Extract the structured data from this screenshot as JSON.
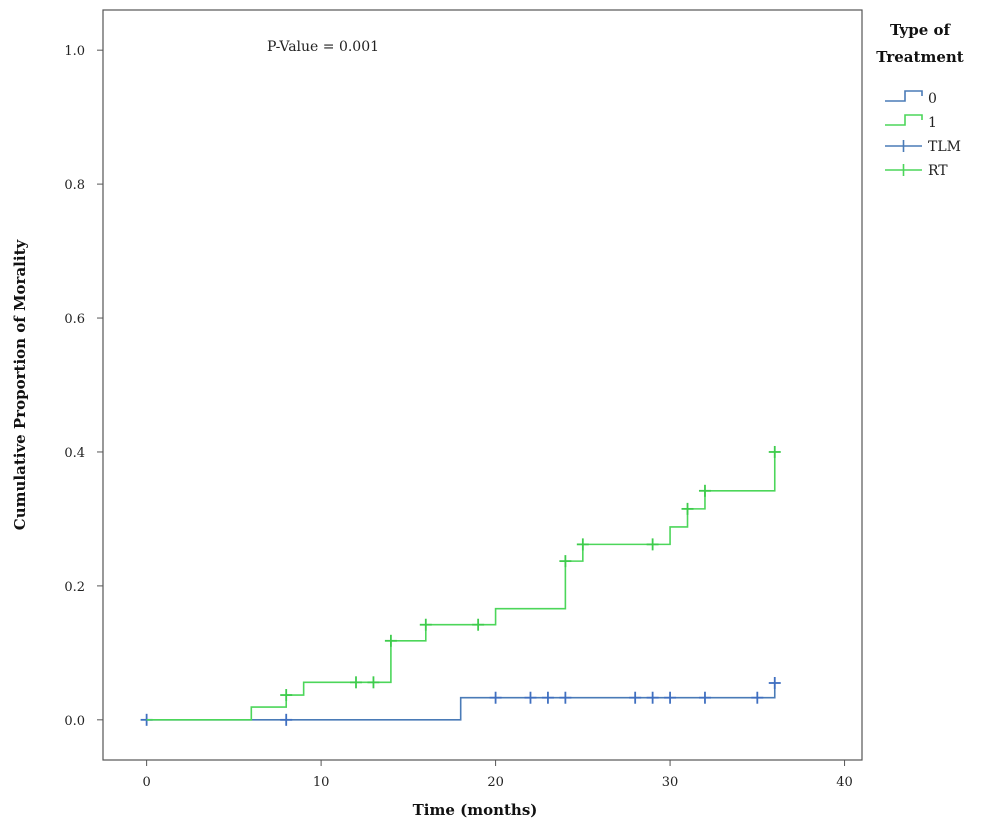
{
  "chart_data": {
    "type": "line",
    "step": true,
    "title": "",
    "xlabel": "Time (months)",
    "ylabel": "Cumulative Proportion of Morality",
    "xlim": [
      -2.5,
      41
    ],
    "ylim": [
      -0.06,
      1.06
    ],
    "xticks": [
      0,
      10,
      20,
      30,
      40
    ],
    "xtick_labels": [
      "0",
      "10",
      "20",
      "30",
      "40"
    ],
    "yticks": [
      0.0,
      0.2,
      0.4,
      0.6,
      0.8,
      1.0
    ],
    "ytick_labels": [
      "0.0",
      "0.2",
      "0.4",
      "0.6",
      "0.8",
      "1.0"
    ],
    "grid": false,
    "legend_position": "right",
    "annotation": "P-Value = 0.001",
    "legend": {
      "title_line1": "Type of",
      "title_line2": "Treatment",
      "entries": [
        {
          "label": "0",
          "color": "#4a7bb7",
          "marker": "step"
        },
        {
          "label": "1",
          "color": "#4cd65a",
          "marker": "step"
        },
        {
          "label": "TLM",
          "color": "#4a7bb7",
          "marker": "censor"
        },
        {
          "label": "RT",
          "color": "#4cd65a",
          "marker": "censor"
        }
      ]
    },
    "series": [
      {
        "color": "#4a7bb7",
        "censor_color": "#3f6fc0",
        "steps": [
          [
            0,
            0.0
          ],
          [
            18,
            0.033
          ],
          [
            36,
            0.055
          ]
        ],
        "end_x": 36,
        "censored": [
          [
            0,
            0.0
          ],
          [
            8,
            0.0
          ],
          [
            20,
            0.033
          ],
          [
            22,
            0.033
          ],
          [
            23,
            0.033
          ],
          [
            24,
            0.033
          ],
          [
            28,
            0.033
          ],
          [
            29,
            0.033
          ],
          [
            30,
            0.033
          ],
          [
            32,
            0.033
          ],
          [
            35,
            0.033
          ],
          [
            36,
            0.055
          ]
        ]
      },
      {
        "color": "#4cd65a",
        "censor_color": "#3ecc4c",
        "steps": [
          [
            0,
            0.0
          ],
          [
            6,
            0.019
          ],
          [
            8,
            0.037
          ],
          [
            9,
            0.056
          ],
          [
            14,
            0.118
          ],
          [
            16,
            0.142
          ],
          [
            20,
            0.166
          ],
          [
            24,
            0.237
          ],
          [
            25,
            0.262
          ],
          [
            30,
            0.288
          ],
          [
            31,
            0.315
          ],
          [
            32,
            0.342
          ],
          [
            36,
            0.4
          ]
        ],
        "end_x": 36,
        "censored": [
          [
            8,
            0.037
          ],
          [
            12,
            0.056
          ],
          [
            13,
            0.056
          ],
          [
            14,
            0.118
          ],
          [
            16,
            0.142
          ],
          [
            19,
            0.142
          ],
          [
            24,
            0.237
          ],
          [
            25,
            0.262
          ],
          [
            29,
            0.262
          ],
          [
            31,
            0.315
          ],
          [
            32,
            0.342
          ],
          [
            36,
            0.4
          ]
        ]
      }
    ]
  }
}
